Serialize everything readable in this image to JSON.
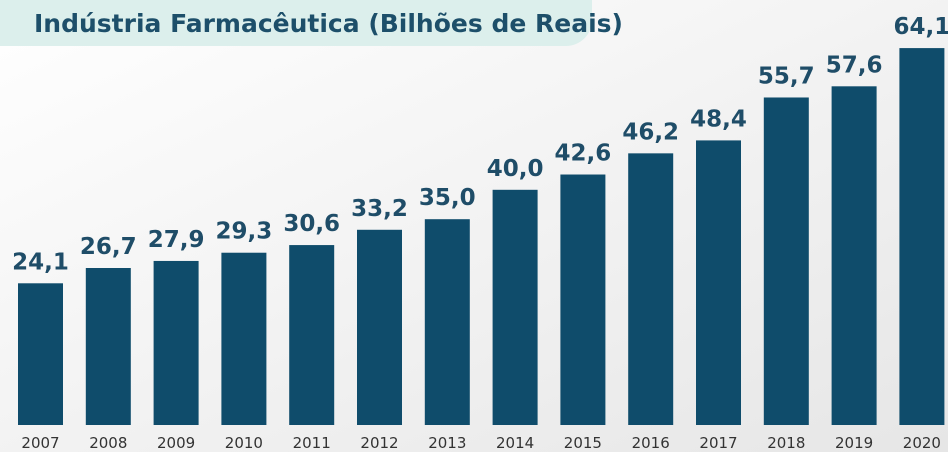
{
  "chart_data": {
    "type": "bar",
    "title": "Indústria Farmacêutica (Bilhões de Reais)",
    "categories": [
      "2007",
      "2008",
      "2009",
      "2010",
      "2011",
      "2012",
      "2013",
      "2014",
      "2015",
      "2016",
      "2017",
      "2018",
      "2019",
      "2020"
    ],
    "values": [
      24.1,
      26.7,
      27.9,
      29.3,
      30.6,
      33.2,
      35.0,
      40.0,
      42.6,
      46.2,
      48.4,
      55.7,
      57.6,
      64.1
    ],
    "value_labels": [
      "24,1",
      "26,7",
      "27,9",
      "29,3",
      "30,6",
      "33,2",
      "35,0",
      "40,0",
      "42,6",
      "46,2",
      "48,4",
      "55,7",
      "57,6",
      "64,1"
    ],
    "color": "#0f4c6b"
  }
}
